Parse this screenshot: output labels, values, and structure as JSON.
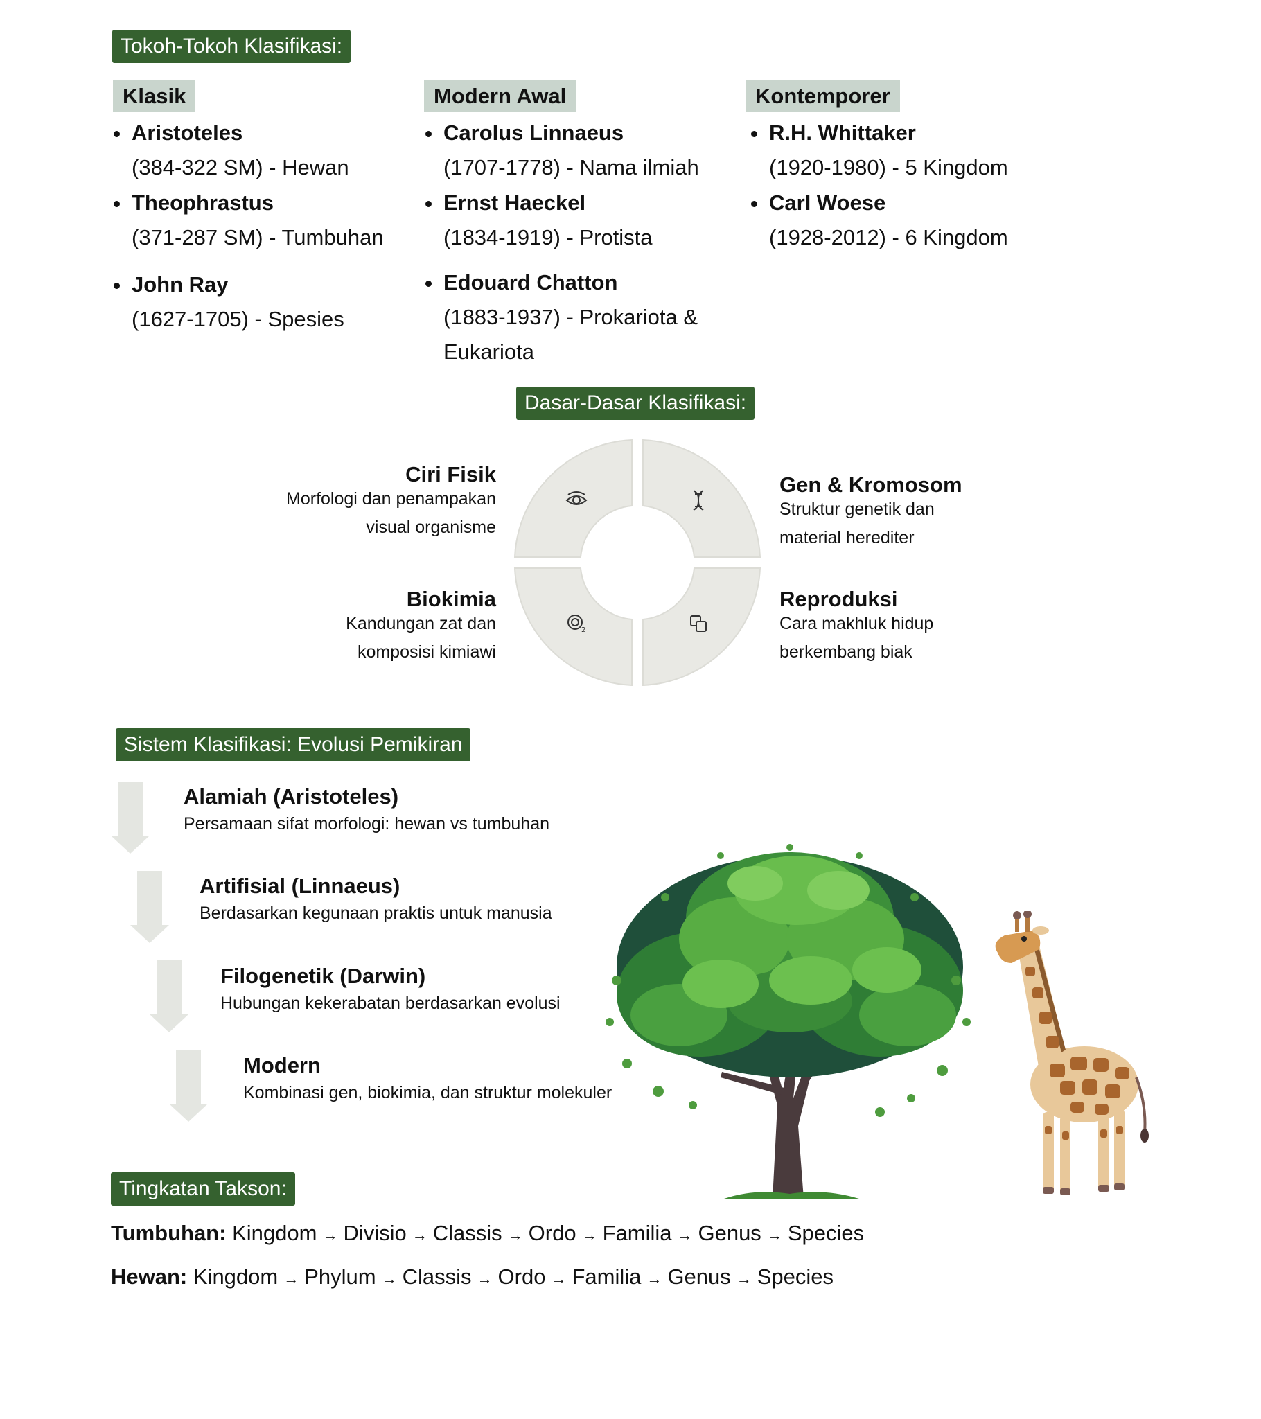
{
  "tokoh": {
    "heading": "Tokoh-Tokoh Klasifikasi:",
    "columns": [
      {
        "title": "Klasik",
        "people": [
          {
            "name": "Aristoteles",
            "desc": "(384-322 SM) - Hewan"
          },
          {
            "name": "Theophrastus",
            "desc": "(371-287 SM) - Tumbuhan"
          },
          {
            "name": "John Ray",
            "desc": "(1627-1705) - Spesies"
          }
        ]
      },
      {
        "title": "Modern Awal",
        "people": [
          {
            "name": "Carolus Linnaeus",
            "desc": "(1707-1778) - Nama ilmiah"
          },
          {
            "name": "Ernst Haeckel",
            "desc": "(1834-1919) - Protista"
          },
          {
            "name": "Edouard Chatton",
            "desc": "(1883-1937) - Prokariota &",
            "desc2": "Eukariota"
          }
        ]
      },
      {
        "title": "Kontemporer",
        "people": [
          {
            "name": "R.H. Whittaker",
            "desc": "(1920-1980) - 5 Kingdom"
          },
          {
            "name": "Carl Woese",
            "desc": "(1928-2012) - 6 Kingdom"
          }
        ]
      }
    ]
  },
  "dasar": {
    "heading": "Dasar-Dasar Klasifikasi:",
    "items": [
      {
        "title": "Ciri Fisik",
        "desc": "Morfologi dan penampakan visual organisme",
        "icon": "eye-icon"
      },
      {
        "title": "Gen & Kromosom",
        "desc": "Struktur genetik dan material herediter",
        "icon": "dna-icon"
      },
      {
        "title": "Biokimia",
        "desc": "Kandungan zat dan komposisi kimiawi",
        "icon": "o2-molecule-icon"
      },
      {
        "title": "Reproduksi",
        "desc": "Cara makhluk hidup berkembang biak",
        "icon": "copy-icon"
      }
    ]
  },
  "sistem": {
    "heading": "Sistem Klasifikasi: Evolusi Pemikiran",
    "steps": [
      {
        "title": "Alamiah (Aristoteles)",
        "desc": "Persamaan sifat morfologi: hewan vs tumbuhan"
      },
      {
        "title": "Artifisial (Linnaeus)",
        "desc": "Berdasarkan kegunaan praktis untuk manusia"
      },
      {
        "title": "Filogenetik (Darwin)",
        "desc": "Hubungan kekerabatan berdasarkan evolusi"
      },
      {
        "title": "Modern",
        "desc": "Kombinasi gen, biokimia, dan struktur molekuler"
      }
    ]
  },
  "takson": {
    "heading": "Tingkatan Takson:",
    "rows": [
      {
        "label": "Tumbuhan:",
        "levels": [
          "Kingdom",
          "Divisio",
          "Classis",
          "Ordo",
          "Familia",
          "Genus",
          "Species"
        ]
      },
      {
        "label": "Hewan:",
        "levels": [
          "Kingdom",
          "Phylum",
          "Classis",
          "Ordo",
          "Familia",
          "Genus",
          "Species"
        ]
      }
    ],
    "arrow": "→"
  },
  "illustrations": [
    "tree-illustration",
    "giraffe-illustration"
  ],
  "colors": {
    "accent": "#35612f",
    "column_head": "#c9d5cd",
    "ring": "#e9e9e4",
    "arrow": "#e4e6e1"
  }
}
